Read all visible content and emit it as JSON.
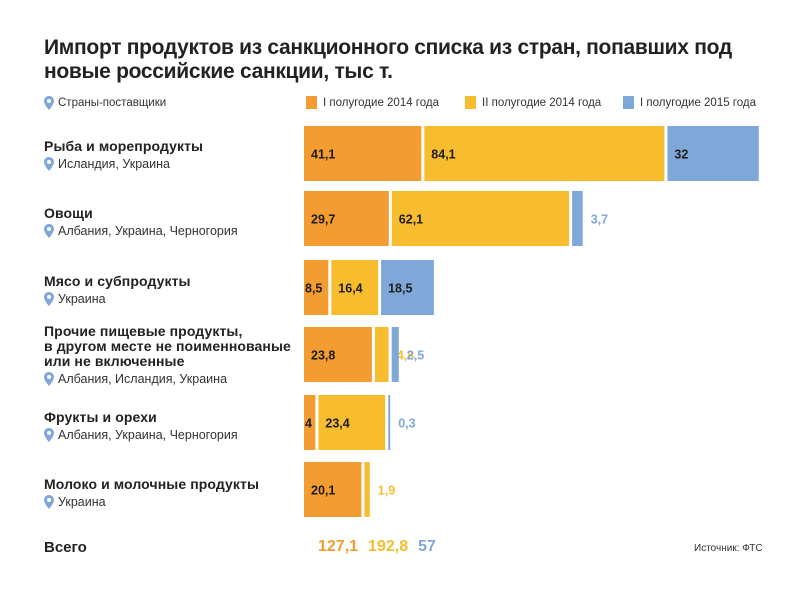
{
  "title": "Импорт продуктов из санкционного списка из стран, попавших под новые российские санкции, тыс т.",
  "legend": {
    "supplier_label": "Страны-поставщики",
    "supplier_icon": "map-pin-icon"
  },
  "colors": {
    "h1_2014": "#F39C31",
    "h2_2014": "#F7BD2E",
    "h1_2015": "#7FA8D8",
    "pin": "#7FA8D8"
  },
  "chart_data": {
    "type": "bar",
    "orientation": "horizontal",
    "stacked": true,
    "title": "Импорт продуктов из санкционного списка из стран, попавших под новые российские санкции, тыс т.",
    "xlabel": "",
    "ylabel": "",
    "unit": "тыс т",
    "grid": false,
    "legend_position": "top",
    "categories": [
      "Рыба и морепродукты",
      "Овощи",
      "Мясо и субпродукты",
      "Прочие пищевые продукты, в другом месте не поименнованые или не включенные",
      "Фрукты и орехи",
      "Молоко и молочные продукты"
    ],
    "category_lines": [
      [
        "Рыба и морепродукты"
      ],
      [
        "Овощи"
      ],
      [
        "Мясо и субпродукты"
      ],
      [
        "Прочие пищевые продукты,",
        "в другом месте не поименнованые",
        "или не включенные"
      ],
      [
        "Фрукты и орехи"
      ],
      [
        "Молоко и молочные продукты"
      ]
    ],
    "countries": [
      "Исландия, Украина",
      "Албания, Украина, Черногория",
      "Украина",
      "Албания, Исландия, Украина",
      "Албания, Украина, Черногория",
      "Украина"
    ],
    "series": [
      {
        "name": "I полугодие 2014 года",
        "color": "#F39C31",
        "values": [
          41.1,
          29.7,
          8.5,
          23.8,
          4,
          20.1
        ],
        "labels": [
          "41,1",
          "29,7",
          "8,5",
          "23,8",
          "4",
          "20,1"
        ]
      },
      {
        "name": "II полугодие 2014 года",
        "color": "#F7BD2E",
        "values": [
          84.1,
          62.1,
          16.4,
          4.8,
          23.4,
          1.9
        ],
        "labels": [
          "84,1",
          "62,1",
          "16,4",
          "4,8",
          "23,4",
          "1,9"
        ]
      },
      {
        "name": "I полугодие 2015 года",
        "color": "#7FA8D8",
        "values": [
          32,
          3.7,
          18.5,
          2.5,
          0.3,
          null
        ],
        "labels": [
          "32",
          "3,7",
          "18,5",
          "2,5",
          "0,3",
          ""
        ]
      }
    ],
    "totals_label": "Всего",
    "totals": [
      "127,1",
      "192,8",
      "57"
    ],
    "source": "Источник: ФТС"
  }
}
